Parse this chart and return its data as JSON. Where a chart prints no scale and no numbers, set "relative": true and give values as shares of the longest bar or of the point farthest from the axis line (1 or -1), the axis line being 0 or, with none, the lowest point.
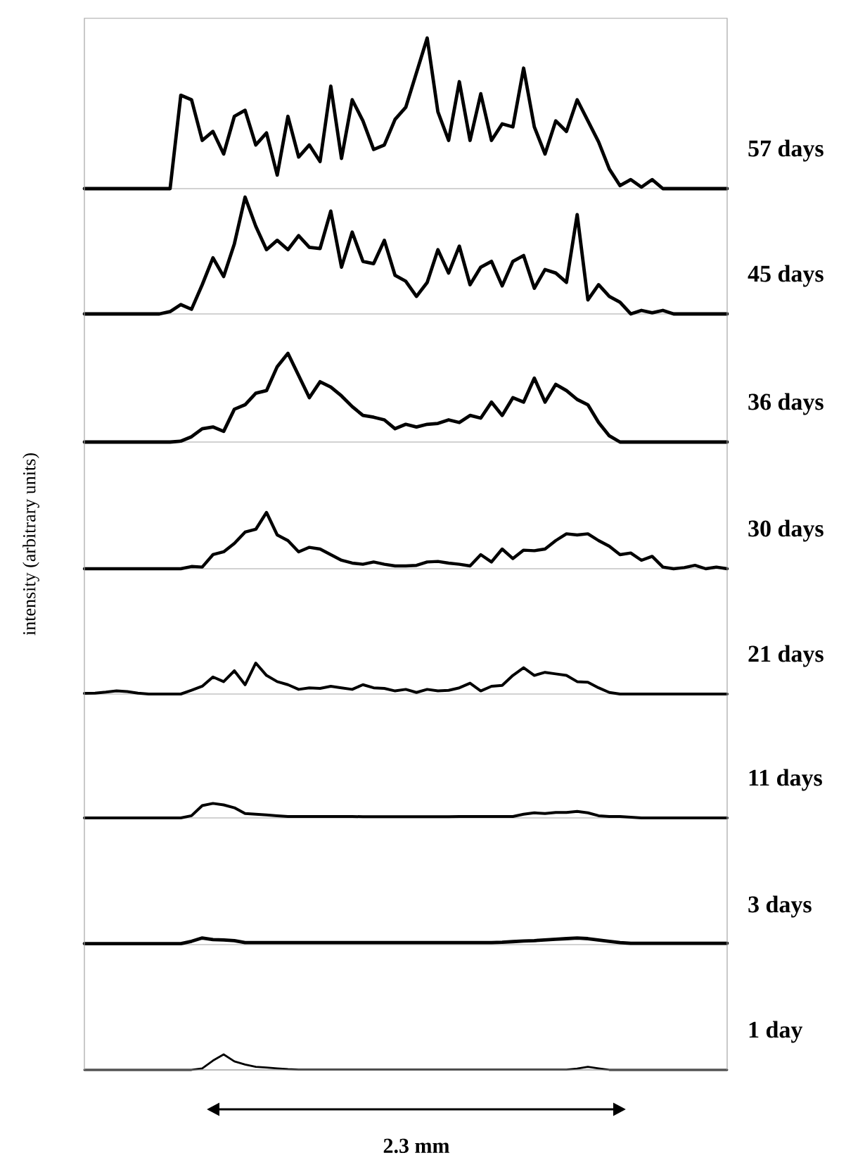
{
  "chart_data": [
    {
      "type": "line",
      "relative": true,
      "categories": [
        null,
        null,
        null,
        null,
        null,
        null,
        null,
        null,
        null,
        null,
        null,
        null,
        null,
        null,
        null,
        null,
        null,
        null,
        null,
        null,
        null,
        null,
        null,
        null,
        null,
        null,
        null,
        null,
        null,
        null,
        null,
        null,
        null,
        null,
        null,
        null,
        null,
        null,
        null,
        null,
        null,
        null,
        null,
        null,
        null,
        null,
        null,
        null,
        null,
        null,
        null,
        null,
        null,
        null,
        null,
        null,
        null,
        null,
        null,
        null,
        null
      ],
      "series": [
        {
          "name": "57 days",
          "color": "#000000",
          "values": [
            0,
            0,
            0,
            0,
            0,
            0,
            0,
            0,
            0,
            0.62,
            0.59,
            0.32,
            0.38,
            0.23,
            0.48,
            0.52,
            0.29,
            0.37,
            0.09,
            0.48,
            0.21,
            0.29,
            0.18,
            0.68,
            0.2,
            0.59,
            0.45,
            0.26,
            0.29,
            0.46,
            0.54,
            0.77,
            1,
            0.51,
            0.32,
            0.71,
            0.32,
            0.63,
            0.32,
            0.43,
            0.41,
            0.8,
            0.41,
            0.23,
            0.45,
            0.38,
            0.59,
            0.45,
            0.31,
            0.13,
            0.02,
            0.06,
            0.01,
            0.06,
            0,
            0,
            0,
            0,
            0,
            0,
            0
          ]
        }
      ]
    },
    {
      "type": "line",
      "relative": true,
      "categories": [
        null,
        null,
        null,
        null,
        null,
        null,
        null,
        null,
        null,
        null,
        null,
        null,
        null,
        null,
        null,
        null,
        null,
        null,
        null,
        null,
        null,
        null,
        null,
        null,
        null,
        null,
        null,
        null,
        null,
        null,
        null,
        null,
        null,
        null,
        null,
        null,
        null,
        null,
        null,
        null,
        null,
        null,
        null,
        null,
        null,
        null,
        null,
        null,
        null,
        null,
        null,
        null,
        null,
        null,
        null,
        null,
        null,
        null,
        null,
        null,
        null
      ],
      "series": [
        {
          "name": "45 days",
          "color": "#000000",
          "values": [
            0,
            0,
            0,
            0,
            0,
            0,
            0,
            0,
            0.02,
            0.08,
            0.04,
            0.25,
            0.48,
            0.32,
            0.6,
            1,
            0.75,
            0.55,
            0.63,
            0.55,
            0.67,
            0.57,
            0.56,
            0.88,
            0.4,
            0.7,
            0.45,
            0.43,
            0.63,
            0.33,
            0.28,
            0.15,
            0.27,
            0.55,
            0.35,
            0.58,
            0.25,
            0.4,
            0.45,
            0.24,
            0.45,
            0.5,
            0.22,
            0.38,
            0.35,
            0.27,
            0.85,
            0.12,
            0.25,
            0.15,
            0.1,
            0,
            0.03,
            0.01,
            0.03,
            0,
            0,
            0,
            0,
            0,
            0
          ]
        }
      ]
    },
    {
      "type": "line",
      "relative": true,
      "categories": [
        null,
        null,
        null,
        null,
        null,
        null,
        null,
        null,
        null,
        null,
        null,
        null,
        null,
        null,
        null,
        null,
        null,
        null,
        null,
        null,
        null,
        null,
        null,
        null,
        null,
        null,
        null,
        null,
        null,
        null,
        null,
        null,
        null,
        null,
        null,
        null,
        null,
        null,
        null,
        null,
        null,
        null,
        null,
        null,
        null,
        null,
        null,
        null,
        null,
        null,
        null,
        null,
        null,
        null,
        null,
        null,
        null,
        null,
        null,
        null,
        null
      ],
      "series": [
        {
          "name": "36 days",
          "color": "#000000",
          "values": [
            0,
            0,
            0,
            0,
            0,
            0,
            0,
            0,
            0,
            0.01,
            0.06,
            0.15,
            0.17,
            0.12,
            0.37,
            0.42,
            0.55,
            0.58,
            0.85,
            1,
            0.75,
            0.5,
            0.68,
            0.62,
            0.52,
            0.4,
            0.3,
            0.28,
            0.25,
            0.15,
            0.2,
            0.17,
            0.2,
            0.21,
            0.25,
            0.22,
            0.3,
            0.27,
            0.45,
            0.3,
            0.5,
            0.45,
            0.72,
            0.45,
            0.65,
            0.58,
            0.48,
            0.42,
            0.22,
            0.07,
            0,
            0,
            0,
            0,
            0,
            0,
            0,
            0,
            0,
            0,
            0
          ]
        }
      ]
    },
    {
      "type": "line",
      "ylabel": "intensity (arbitrary units)",
      "relative": true,
      "categories": [
        null,
        null,
        null,
        null,
        null,
        null,
        null,
        null,
        null,
        null,
        null,
        null,
        null,
        null,
        null,
        null,
        null,
        null,
        null,
        null,
        null,
        null,
        null,
        null,
        null,
        null,
        null,
        null,
        null,
        null,
        null,
        null,
        null,
        null,
        null,
        null,
        null,
        null,
        null,
        null,
        null,
        null,
        null,
        null,
        null,
        null,
        null,
        null,
        null,
        null,
        null,
        null,
        null,
        null,
        null,
        null,
        null,
        null,
        null,
        null,
        null
      ],
      "series": [
        {
          "name": "30 days",
          "color": "#000000",
          "values": [
            0,
            0,
            0,
            0,
            0,
            0,
            0,
            0,
            0,
            0,
            0.04,
            0.03,
            0.25,
            0.3,
            0.45,
            0.65,
            0.7,
            1,
            0.6,
            0.5,
            0.3,
            0.38,
            0.35,
            0.25,
            0.15,
            0.1,
            0.08,
            0.12,
            0.08,
            0.05,
            0.05,
            0.06,
            0.12,
            0.13,
            0.1,
            0.08,
            0.05,
            0.25,
            0.12,
            0.35,
            0.18,
            0.33,
            0.32,
            0.35,
            0.5,
            0.62,
            0.6,
            0.62,
            0.5,
            0.4,
            0.25,
            0.28,
            0.15,
            0.22,
            0.03,
            0,
            0.02,
            0.06,
            0,
            0.03,
            0
          ]
        }
      ]
    },
    {
      "type": "line",
      "relative": true,
      "categories": [
        null,
        null,
        null,
        null,
        null,
        null,
        null,
        null,
        null,
        null,
        null,
        null,
        null,
        null,
        null,
        null,
        null,
        null,
        null,
        null,
        null,
        null,
        null,
        null,
        null,
        null,
        null,
        null,
        null,
        null,
        null,
        null,
        null,
        null,
        null,
        null,
        null,
        null,
        null,
        null,
        null,
        null,
        null,
        null,
        null,
        null,
        null,
        null,
        null,
        null,
        null,
        null,
        null,
        null,
        null,
        null,
        null,
        null,
        null,
        null,
        null
      ],
      "series": [
        {
          "name": "21 days",
          "color": "#000000",
          "values": [
            0.02,
            0.03,
            0.06,
            0.1,
            0.08,
            0.03,
            0,
            0,
            0,
            0,
            0.12,
            0.25,
            0.55,
            0.4,
            0.75,
            0.3,
            1,
            0.6,
            0.4,
            0.3,
            0.15,
            0.2,
            0.18,
            0.25,
            0.2,
            0.15,
            0.3,
            0.2,
            0.18,
            0.1,
            0.15,
            0.05,
            0.15,
            0.1,
            0.12,
            0.2,
            0.35,
            0.1,
            0.25,
            0.28,
            0.6,
            0.85,
            0.6,
            0.7,
            0.65,
            0.6,
            0.4,
            0.38,
            0.2,
            0.05,
            0,
            0,
            0,
            0,
            0,
            0,
            0,
            0,
            0,
            0,
            0
          ]
        }
      ]
    },
    {
      "type": "line",
      "relative": true,
      "categories": [
        null,
        null,
        null,
        null,
        null,
        null,
        null,
        null,
        null,
        null,
        null,
        null,
        null,
        null,
        null,
        null,
        null,
        null,
        null,
        null,
        null,
        null,
        null,
        null,
        null,
        null,
        null,
        null,
        null,
        null,
        null,
        null,
        null,
        null,
        null,
        null,
        null,
        null,
        null,
        null,
        null,
        null,
        null,
        null,
        null,
        null,
        null,
        null,
        null,
        null,
        null,
        null,
        null,
        null,
        null,
        null,
        null,
        null,
        null,
        null,
        null
      ],
      "series": [
        {
          "name": "11 days",
          "color": "#000000",
          "values": [
            0,
            0,
            0,
            0,
            0,
            0,
            0,
            0,
            0,
            0,
            0.15,
            0.85,
            1,
            0.9,
            0.7,
            0.3,
            0.25,
            0.2,
            0.15,
            0.1,
            0.1,
            0.1,
            0.1,
            0.1,
            0.1,
            0.1,
            0.08,
            0.08,
            0.08,
            0.08,
            0.08,
            0.08,
            0.08,
            0.08,
            0.08,
            0.1,
            0.1,
            0.1,
            0.1,
            0.1,
            0.1,
            0.25,
            0.35,
            0.3,
            0.38,
            0.38,
            0.45,
            0.35,
            0.15,
            0.1,
            0.1,
            0.05,
            0,
            0,
            0,
            0,
            0,
            0,
            0,
            0,
            0
          ]
        }
      ]
    },
    {
      "type": "line",
      "relative": true,
      "categories": [
        null,
        null,
        null,
        null,
        null,
        null,
        null,
        null,
        null,
        null,
        null,
        null,
        null,
        null,
        null,
        null,
        null,
        null,
        null,
        null,
        null,
        null,
        null,
        null,
        null,
        null,
        null,
        null,
        null,
        null,
        null,
        null,
        null,
        null,
        null,
        null,
        null,
        null,
        null,
        null,
        null,
        null,
        null,
        null,
        null,
        null,
        null,
        null,
        null,
        null,
        null,
        null,
        null,
        null,
        null,
        null,
        null,
        null,
        null,
        null,
        null
      ],
      "series": [
        {
          "name": "3 days",
          "color": "#000000",
          "values": [
            0.15,
            0.15,
            0.15,
            0.15,
            0.15,
            0.15,
            0.15,
            0.15,
            0.15,
            0.15,
            0.5,
            1,
            0.75,
            0.7,
            0.6,
            0.3,
            0.3,
            0.3,
            0.3,
            0.3,
            0.3,
            0.3,
            0.3,
            0.3,
            0.3,
            0.3,
            0.3,
            0.3,
            0.3,
            0.3,
            0.3,
            0.3,
            0.3,
            0.3,
            0.3,
            0.3,
            0.3,
            0.3,
            0.3,
            0.35,
            0.45,
            0.55,
            0.6,
            0.7,
            0.8,
            0.9,
            1,
            0.9,
            0.7,
            0.5,
            0.3,
            0.2,
            0.2,
            0.2,
            0.2,
            0.2,
            0.2,
            0.2,
            0.2,
            0.2,
            0.2
          ]
        }
      ]
    },
    {
      "type": "line",
      "annotations": [
        "2.3 mm"
      ],
      "relative": true,
      "categories": [
        null,
        null,
        null,
        null,
        null,
        null,
        null,
        null,
        null,
        null,
        null,
        null,
        null,
        null,
        null,
        null,
        null,
        null,
        null,
        null,
        null,
        null,
        null,
        null,
        null,
        null,
        null,
        null,
        null,
        null,
        null,
        null,
        null,
        null,
        null,
        null,
        null,
        null,
        null,
        null,
        null,
        null,
        null,
        null,
        null,
        null,
        null,
        null,
        null,
        null,
        null,
        null,
        null,
        null,
        null,
        null,
        null,
        null,
        null,
        null,
        null
      ],
      "series": [
        {
          "name": "1 day",
          "color": "#000000",
          "values": [
            0,
            0,
            0,
            0,
            0,
            0,
            0,
            0,
            0,
            0,
            0,
            0.1,
            0.6,
            1,
            0.55,
            0.35,
            0.2,
            0.15,
            0.1,
            0.05,
            0.02,
            0.02,
            0.02,
            0.02,
            0.02,
            0.02,
            0.02,
            0.02,
            0.02,
            0.02,
            0.02,
            0.02,
            0.02,
            0.02,
            0.02,
            0.02,
            0.02,
            0.02,
            0.02,
            0.02,
            0.02,
            0.02,
            0.02,
            0.02,
            0.02,
            0.02,
            0.08,
            0.2,
            0.1,
            0,
            0,
            0,
            0,
            0,
            0,
            0,
            0,
            0,
            0,
            0,
            0
          ]
        }
      ]
    }
  ]
}
